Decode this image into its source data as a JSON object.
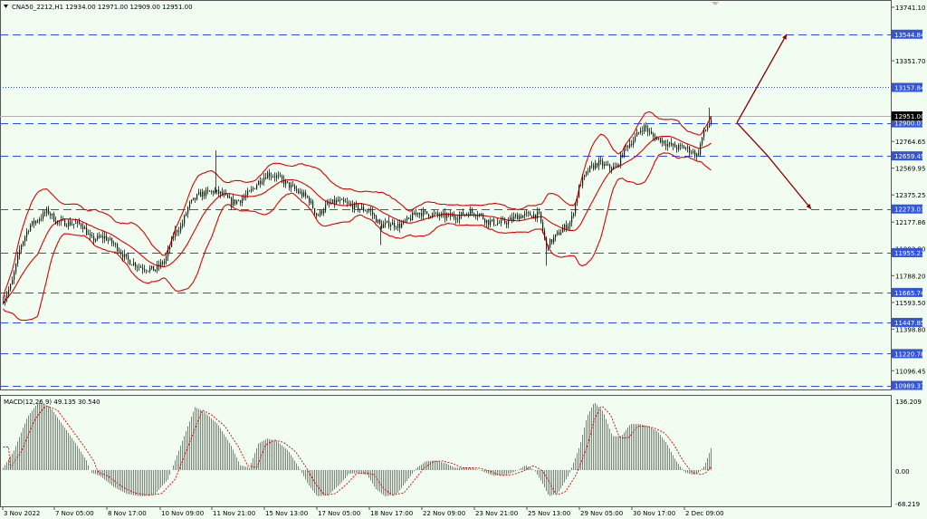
{
  "header": {
    "menu_icon": "triangle-down-icon",
    "symbol_info": "CNA50_2212,H1  12934.00 12971.00 12909.00 12951.00"
  },
  "colors": {
    "background": "#f0fdf0",
    "border": "#555555",
    "candle": "#1a1a1a",
    "bollinger": "#e00000",
    "hline_dashed": "#3050e0",
    "hline_dotted": "#3050e0",
    "arrow": "#8b0000",
    "macd_hist": "#808080",
    "macd_signal": "#e00000",
    "price_label_bg": "#3355dd",
    "current_price_bg": "#000000",
    "text": "#000000"
  },
  "price_axis": {
    "ticks": [
      "13741.10",
      "13351.70",
      "12764.65",
      "12569.95",
      "12375.25",
      "12177.86",
      "11983.90",
      "11788.20",
      "11593.50",
      "11398.80",
      "11096.45"
    ],
    "level_labels": [
      "13544.84",
      "13157.84",
      "12900.03",
      "12659.49",
      "12273.03",
      "11955.21",
      "11665.74",
      "11447.85",
      "11220.78",
      "10989.37"
    ],
    "current_price": "12951.00"
  },
  "indicator": {
    "label": "MACD(12,26,9) 49.135 30.540",
    "axis_labels": [
      "136.209",
      "0.00",
      "-68.219"
    ]
  },
  "time_axis": {
    "labels": [
      "3 Nov 2022",
      "7 Nov 05:00",
      "8 Nov 17:00",
      "10 Nov 09:00",
      "11 Nov 21:00",
      "15 Nov 13:00",
      "17 Nov 05:00",
      "18 Nov 17:00",
      "22 Nov 09:00",
      "23 Nov 21:00",
      "25 Nov 13:00",
      "29 Nov 05:00",
      "30 Nov 17:00",
      "2 Dec 09:00"
    ]
  }
}
